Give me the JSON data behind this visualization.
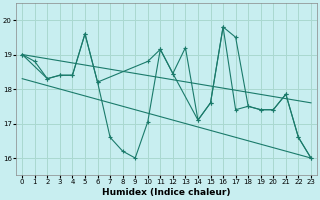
{
  "xlabel": "Humidex (Indice chaleur)",
  "bg_color": "#c8eef0",
  "grid_color": "#aad8d0",
  "line_color": "#1a7a6a",
  "xlim": [
    -0.5,
    23.5
  ],
  "ylim": [
    15.5,
    20.5
  ],
  "yticks": [
    16,
    17,
    18,
    19,
    20
  ],
  "xticks": [
    0,
    1,
    2,
    3,
    4,
    5,
    6,
    7,
    8,
    9,
    10,
    11,
    12,
    13,
    14,
    15,
    16,
    17,
    18,
    19,
    20,
    21,
    22,
    23
  ],
  "series1_x": [
    0,
    1,
    2,
    3,
    4,
    5,
    6,
    7,
    8,
    9,
    10,
    11,
    12,
    13,
    14,
    15,
    16,
    17,
    18,
    19,
    20,
    21,
    22,
    23
  ],
  "series1_y": [
    19.0,
    18.8,
    18.3,
    18.4,
    18.4,
    19.6,
    18.2,
    16.6,
    16.2,
    16.0,
    17.05,
    19.15,
    18.45,
    19.2,
    17.1,
    17.6,
    19.8,
    17.4,
    17.5,
    17.4,
    17.4,
    17.85,
    16.6,
    16.0
  ],
  "series2_x": [
    0,
    2,
    3,
    4,
    5,
    6,
    10,
    11,
    12,
    14,
    15,
    16,
    17,
    18,
    19,
    20,
    21,
    22,
    23
  ],
  "series2_y": [
    19.0,
    18.3,
    18.4,
    18.4,
    19.6,
    18.2,
    18.8,
    19.15,
    18.45,
    17.1,
    17.6,
    19.8,
    19.5,
    17.5,
    17.4,
    17.4,
    17.85,
    16.6,
    16.0
  ],
  "series3_x": [
    0,
    23
  ],
  "series3_y": [
    19.0,
    17.6
  ],
  "series4_x": [
    0,
    23
  ],
  "series4_y": [
    18.3,
    16.0
  ]
}
